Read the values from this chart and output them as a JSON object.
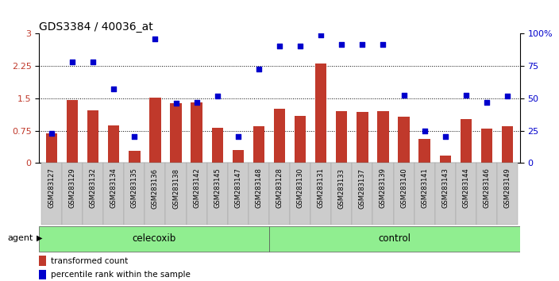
{
  "title": "GDS3384 / 40036_at",
  "categories": [
    "GSM283127",
    "GSM283129",
    "GSM283132",
    "GSM283134",
    "GSM283135",
    "GSM283136",
    "GSM283138",
    "GSM283142",
    "GSM283145",
    "GSM283147",
    "GSM283148",
    "GSM283128",
    "GSM283130",
    "GSM283131",
    "GSM283133",
    "GSM283137",
    "GSM283139",
    "GSM283140",
    "GSM283141",
    "GSM283143",
    "GSM283144",
    "GSM283146",
    "GSM283149"
  ],
  "red_bars": [
    0.68,
    1.47,
    1.22,
    0.88,
    0.28,
    1.52,
    1.38,
    1.4,
    0.82,
    0.3,
    0.85,
    1.25,
    1.1,
    2.3,
    1.2,
    1.18,
    1.2,
    1.07,
    0.55,
    0.18,
    1.02,
    0.8,
    0.85
  ],
  "blue_dots": [
    0.68,
    2.35,
    2.35,
    1.72,
    0.62,
    2.88,
    1.38,
    1.4,
    1.55,
    0.62,
    2.18,
    2.72,
    2.72,
    2.97,
    2.75,
    2.75,
    2.75,
    1.58,
    0.75,
    0.62,
    1.58,
    1.4,
    1.55
  ],
  "celecoxib_count": 11,
  "control_count": 12,
  "bar_color": "#C0392B",
  "dot_color": "#0000CC",
  "agent_label": "agent",
  "celecoxib_label": "celecoxib",
  "control_label": "control",
  "legend_bar": "transformed count",
  "legend_dot": "percentile rank within the sample",
  "ytick_left_labels": [
    "0",
    "0.75",
    "1.5",
    "2.25",
    "3"
  ],
  "ytick_left_vals": [
    0,
    0.75,
    1.5,
    2.25,
    3
  ],
  "ytick_right_labels": [
    "0",
    "25",
    "50",
    "75",
    "100%"
  ],
  "ytick_right_vals": [
    0,
    0.75,
    1.5,
    2.25,
    3
  ],
  "hlines": [
    0.75,
    1.5,
    2.25
  ],
  "bar_width": 0.55,
  "xlim": [
    -0.6,
    22.6
  ],
  "ylim": [
    0,
    3
  ]
}
